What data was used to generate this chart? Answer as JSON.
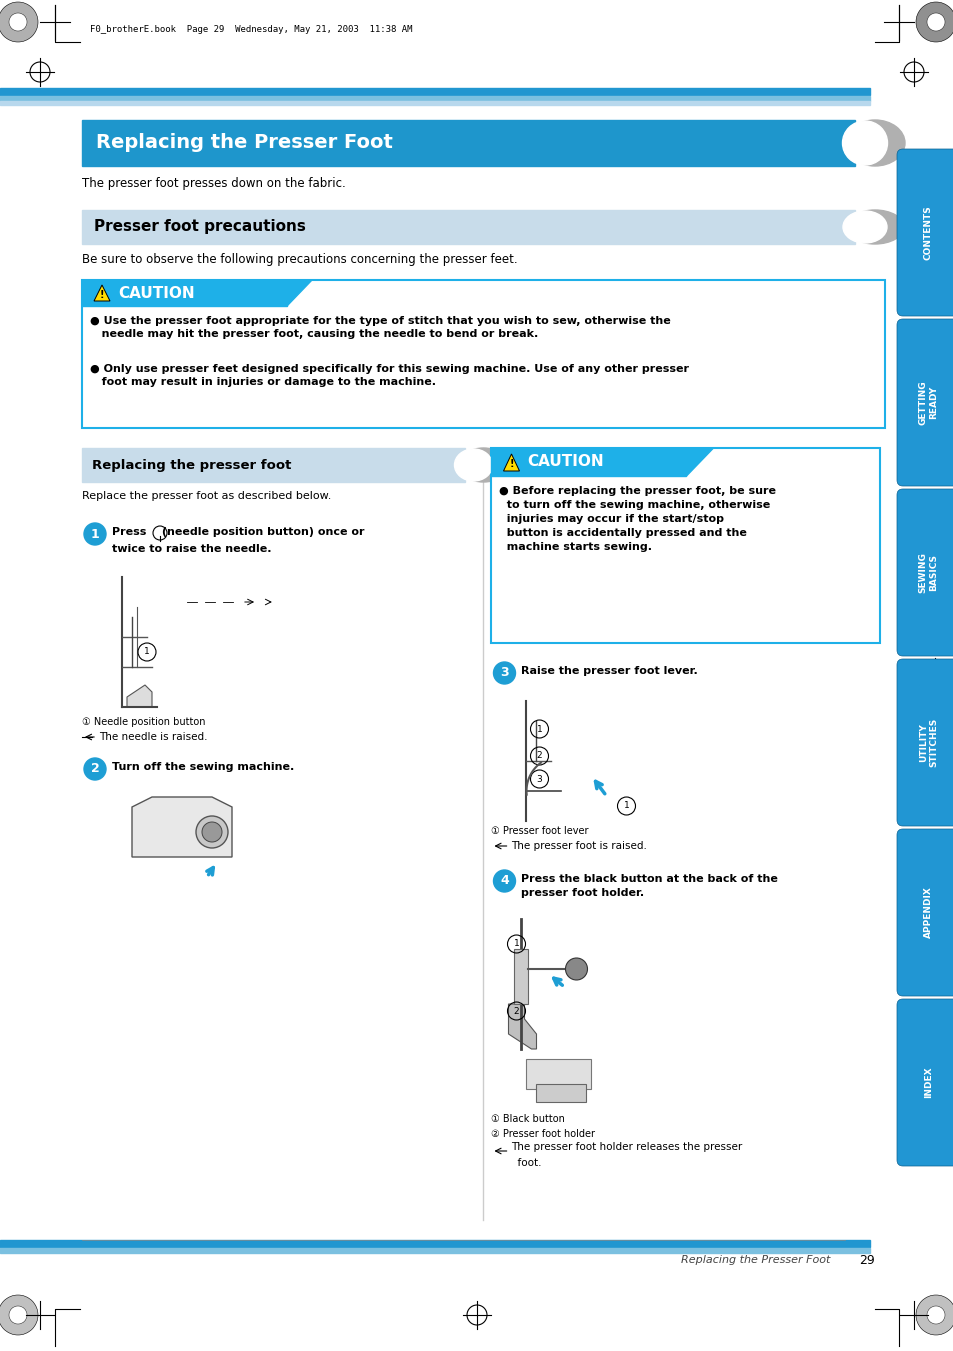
{
  "page_bg": "#ffffff",
  "title_text": "Replacing the Presser Foot",
  "subtitle_text": "Presser foot precautions",
  "section2_text": "Replacing the presser foot",
  "nav_tabs": [
    "CONTENTS",
    "GETTING\nREADY",
    "SEWING\nBASICS",
    "UTILITY\nSTITCHES",
    "APPENDIX",
    "INDEX"
  ],
  "page_number": "29",
  "footer_text": "Replacing the Presser Foot",
  "top_header_text": "F0_brotherE.book  Page 29  Wednesday, May 21, 2003  11:38 AM",
  "blue_dark": "#1e96cc",
  "blue_light": "#c8dcea",
  "blue_caution": "#1eb0e8",
  "tab_color": "#2196d3",
  "stripe1": "#2196d0",
  "stripe2": "#7bc0e0",
  "stripe3": "#b8d8ed",
  "caution_border": "#1eb0e8",
  "step_circle": "#1e9ed4",
  "arrow_blue": "#1e9ed4"
}
